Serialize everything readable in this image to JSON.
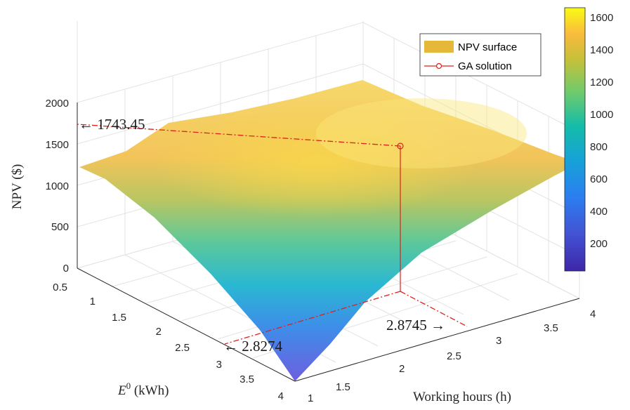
{
  "chart_data": {
    "type": "surface3d",
    "x_axis": {
      "label": "Working hours (h)",
      "ticks": [
        "1",
        "1.5",
        "2",
        "2.5",
        "3",
        "3.5",
        "4"
      ],
      "range": [
        1,
        4
      ]
    },
    "y_axis": {
      "label_italic": "E",
      "label_sup": "0",
      "label_unit": " (kWh)",
      "ticks": [
        "0.5",
        "1",
        "1.5",
        "2",
        "2.5",
        "3",
        "3.5",
        "4"
      ],
      "range": [
        0.5,
        4
      ]
    },
    "z_axis": {
      "label": "NPV ($)",
      "ticks": [
        "0",
        "500",
        "1000",
        "1500",
        "2000"
      ],
      "range": [
        0,
        2000
      ]
    },
    "colorbar": {
      "ticks": [
        "200",
        "400",
        "600",
        "800",
        "1000",
        "1200",
        "1400",
        "1600"
      ],
      "range": [
        0,
        1650
      ],
      "colormap": "parula"
    },
    "legend": {
      "position": "top-right",
      "entries": [
        "NPV surface",
        "GA solution"
      ]
    },
    "ga_solution": {
      "x": 2.8745,
      "y": 2.8274,
      "z": 1743.45
    },
    "annotations": {
      "z_label": "1743.45",
      "y_label": "2.8274",
      "x_label": "2.8745"
    },
    "surface_corners": {
      "x1_y0.5": 1200,
      "x4_y0.5": 1730,
      "x1_y4": 0,
      "x4_y4": 1200
    },
    "grid": true
  },
  "colors": {
    "ga_marker": "#e0201b",
    "legend_surface": "#e6b83a"
  }
}
